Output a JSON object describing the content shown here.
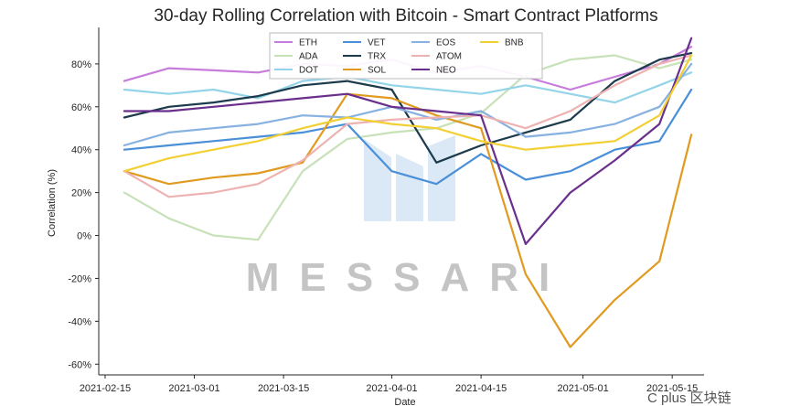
{
  "chart_data": {
    "type": "line",
    "title": "30-day Rolling Correlation with Bitcoin - Smart Contract Platforms",
    "xlabel": "Date",
    "ylabel": "Correlation (%)",
    "x_ticks": [
      "2021-02-15",
      "2021-03-01",
      "2021-03-15",
      "2021-04-01",
      "2021-04-15",
      "2021-05-01",
      "2021-05-15"
    ],
    "y_ticks": [
      "80%",
      "60%",
      "40%",
      "20%",
      "0%",
      "-20%",
      "-40%",
      "-60%"
    ],
    "ylim": [
      -65,
      97
    ],
    "x_range": [
      "2021-02-14",
      "2021-05-20"
    ],
    "x": [
      "2021-02-18",
      "2021-02-25",
      "2021-03-04",
      "2021-03-11",
      "2021-03-18",
      "2021-03-25",
      "2021-04-01",
      "2021-04-08",
      "2021-04-15",
      "2021-04-22",
      "2021-04-29",
      "2021-05-06",
      "2021-05-13",
      "2021-05-18"
    ],
    "legend_position": "top-center",
    "series": [
      {
        "name": "ETH",
        "color": "#c77cdc",
        "values": [
          72,
          78,
          77,
          76,
          80,
          79,
          82,
          76,
          79,
          74,
          68,
          74,
          80,
          88
        ]
      },
      {
        "name": "ADA",
        "color": "#c7e1b8",
        "values": [
          20,
          8,
          0,
          -2,
          30,
          45,
          48,
          50,
          57,
          75,
          82,
          84,
          78,
          82
        ]
      },
      {
        "name": "DOT",
        "color": "#93d4e8",
        "values": [
          68,
          66,
          68,
          64,
          72,
          74,
          70,
          68,
          66,
          70,
          66,
          62,
          70,
          76
        ]
      },
      {
        "name": "VET",
        "color": "#4a8fd8",
        "values": [
          40,
          42,
          44,
          46,
          48,
          52,
          30,
          24,
          38,
          26,
          30,
          40,
          44,
          68
        ]
      },
      {
        "name": "TRX",
        "color": "#1b3a4b",
        "values": [
          55,
          60,
          62,
          65,
          70,
          72,
          68,
          34,
          42,
          48,
          54,
          72,
          82,
          85
        ]
      },
      {
        "name": "SOL",
        "color": "#e09a20",
        "values": [
          30,
          24,
          27,
          29,
          34,
          66,
          64,
          56,
          50,
          -18,
          -52,
          -30,
          -12,
          47
        ]
      },
      {
        "name": "EOS",
        "color": "#86b1e1",
        "values": [
          42,
          48,
          50,
          52,
          56,
          55,
          60,
          54,
          58,
          46,
          48,
          52,
          60,
          80
        ]
      },
      {
        "name": "ATOM",
        "color": "#eeb2b2",
        "values": [
          30,
          18,
          20,
          24,
          35,
          52,
          54,
          55,
          56,
          50,
          58,
          70,
          80,
          84
        ]
      },
      {
        "name": "NEO",
        "color": "#6a2f8c",
        "values": [
          58,
          58,
          60,
          62,
          64,
          66,
          60,
          58,
          56,
          -4,
          20,
          35,
          52,
          92
        ]
      },
      {
        "name": "BNB",
        "color": "#f2cf33",
        "values": [
          30,
          36,
          40,
          44,
          50,
          55,
          52,
          50,
          44,
          40,
          42,
          44,
          56,
          84
        ]
      }
    ]
  },
  "watermark": {
    "brand": "MESSARI"
  },
  "credit": {
    "text": "C plus 区块链"
  }
}
